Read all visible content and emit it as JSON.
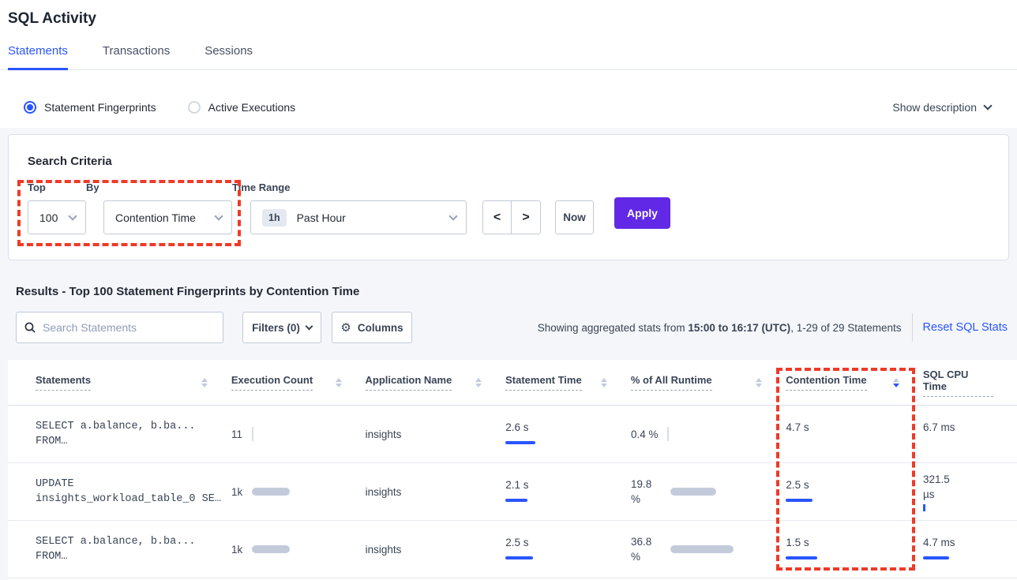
{
  "page": {
    "title": "SQL Activity"
  },
  "tabs": {
    "items": [
      {
        "label": "Statements"
      },
      {
        "label": "Transactions"
      },
      {
        "label": "Sessions"
      }
    ]
  },
  "view_toggle": {
    "statement_fingerprints": "Statement Fingerprints",
    "active_executions": "Active Executions",
    "show_description": "Show description"
  },
  "search_criteria": {
    "heading": "Search Criteria",
    "top": {
      "label": "Top",
      "value": "100"
    },
    "by": {
      "label": "By",
      "value": "Contention Time"
    },
    "time_range": {
      "label": "Time Range",
      "badge": "1h",
      "value": "Past Hour"
    },
    "prev": "<",
    "next": ">",
    "now_label": "Now",
    "apply_label": "Apply"
  },
  "results": {
    "heading": "Results - Top 100 Statement Fingerprints by Contention Time",
    "search_placeholder": "Search Statements",
    "filters_label": "Filters (0)",
    "columns_label": "Columns",
    "stats_prefix": "Showing aggregated stats from ",
    "stats_bold": "15:00 to 16:17 (UTC)",
    "stats_suffix": ", 1-29 of 29 Statements",
    "reset_label": "Reset SQL Stats"
  },
  "table": {
    "columns": [
      {
        "label": "Statements"
      },
      {
        "label": "Execution Count"
      },
      {
        "label": "Application Name"
      },
      {
        "label": "Statement Time"
      },
      {
        "label": "% of All Runtime"
      },
      {
        "label": "Contention Time",
        "sorted": "desc"
      },
      {
        "label": "SQL CPU Time"
      }
    ],
    "rows": [
      {
        "stmt": {
          "line1": "SELECT a.balance, b.ba...",
          "line2": "FROM…"
        },
        "exec": {
          "value": "11",
          "tick_w": 2
        },
        "app": "insights",
        "stime": {
          "value": "2.6 s",
          "gray_w": 18,
          "blue_w": 38
        },
        "runtime": {
          "line1": "0.4 %",
          "line2": "",
          "tick_w": 2
        },
        "cont": {
          "value": "4.7 s",
          "gray_w": 40,
          "blue_w": 0
        },
        "cpu": {
          "line1": "6.7 ms",
          "line2": "",
          "gray_w": 28,
          "blue_w": 0
        }
      },
      {
        "stmt": {
          "line1": "UPDATE",
          "line2": "insights_workload_table_0 SE…"
        },
        "exec": {
          "value": "1k",
          "gray_w": 48
        },
        "app": "insights",
        "stime": {
          "value": "2.1 s",
          "gray_w": 14,
          "blue_w": 28
        },
        "runtime": {
          "line1": "19.8",
          "line2": "%",
          "gray_w": 58
        },
        "cont": {
          "value": "2.5 s",
          "gray_w": 28,
          "blue_w": 34
        },
        "cpu": {
          "line1": "321.5",
          "line2": "µs",
          "tick_w": 3
        }
      },
      {
        "stmt": {
          "line1": "SELECT a.balance, b.ba...",
          "line2": "FROM…"
        },
        "exec": {
          "value": "1k",
          "gray_w": 48
        },
        "app": "insights",
        "stime": {
          "value": "2.5 s",
          "gray_w": 14,
          "blue_w": 35
        },
        "runtime": {
          "line1": "36.8",
          "line2": "%",
          "gray_w": 80
        },
        "cont": {
          "value": "1.5 s",
          "gray_w": 12,
          "blue_w": 40
        },
        "cpu": {
          "line1": "4.7 ms",
          "line2": "",
          "gray_w": 16,
          "blue_w": 33
        }
      }
    ]
  },
  "colors": {
    "accent_blue": "#2a55ff",
    "apply_purple": "#6129e6",
    "annotation_red": "#ee3a28",
    "bar_gray": "#c3cbdb",
    "page_gray": "#f4f6fa"
  }
}
